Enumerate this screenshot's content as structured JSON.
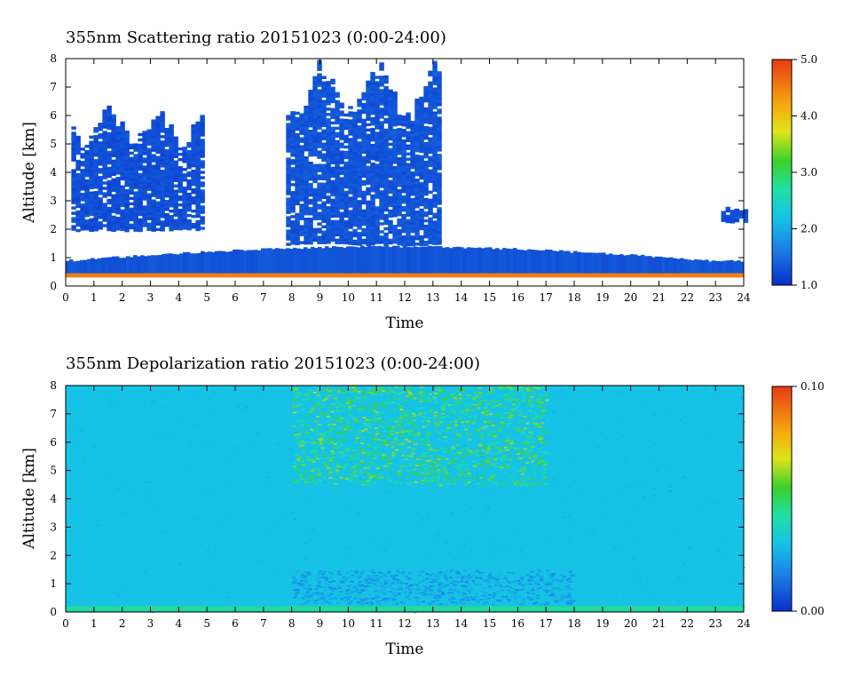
{
  "chart_data": [
    {
      "type": "heatmap",
      "title": "355nm Scattering ratio  20151023 (0:00-24:00)",
      "xlabel": "Time",
      "ylabel": "Altitude [km]",
      "xlim": [
        0,
        24
      ],
      "ylim": [
        0,
        8
      ],
      "x_ticks": [
        "0",
        "1",
        "2",
        "3",
        "4",
        "5",
        "6",
        "7",
        "8",
        "9",
        "10",
        "11",
        "12",
        "13",
        "14",
        "15",
        "16",
        "17",
        "18",
        "19",
        "20",
        "21",
        "22",
        "23",
        "24"
      ],
      "y_ticks": [
        "0",
        "1",
        "2",
        "3",
        "4",
        "5",
        "6",
        "7",
        "8"
      ],
      "colorbar": {
        "range": [
          1.0,
          5.0
        ],
        "ticks": [
          "1.0",
          "2.0",
          "3.0",
          "4.0",
          "5.0"
        ],
        "colormap": "jet"
      },
      "features": [
        {
          "kind": "cloud",
          "time": [
            0.2,
            4.8
          ],
          "altitude": [
            2.0,
            6.4
          ],
          "value": 1.25
        },
        {
          "kind": "cloud",
          "time": [
            7.8,
            13.2
          ],
          "altitude": [
            1.5,
            8.0
          ],
          "value": 1.3
        },
        {
          "kind": "cloud",
          "time": [
            23.2,
            24.0
          ],
          "altitude": [
            2.3,
            2.8
          ],
          "value": 1.25
        },
        {
          "kind": "boundary-layer",
          "time": [
            0,
            24
          ],
          "altitude": [
            0.4,
            1.7
          ],
          "value": 1.3
        },
        {
          "kind": "near-surface-layer",
          "time": [
            0,
            24
          ],
          "altitude": [
            0.3,
            0.45
          ],
          "value": 4.5
        }
      ]
    },
    {
      "type": "heatmap",
      "title": "355nm Depolarization ratio  20151023 (0:00-24:00)",
      "xlabel": "Time",
      "ylabel": "Altitude [km]",
      "xlim": [
        0,
        24
      ],
      "ylim": [
        0,
        8
      ],
      "x_ticks": [
        "0",
        "1",
        "2",
        "3",
        "4",
        "5",
        "6",
        "7",
        "8",
        "9",
        "10",
        "11",
        "12",
        "13",
        "14",
        "15",
        "16",
        "17",
        "18",
        "19",
        "20",
        "21",
        "22",
        "23",
        "24"
      ],
      "y_ticks": [
        "0",
        "1",
        "2",
        "3",
        "4",
        "5",
        "6",
        "7",
        "8"
      ],
      "colorbar": {
        "range": [
          0.0,
          0.1
        ],
        "ticks": [
          "0.00",
          "0.10"
        ],
        "colormap": "jet"
      },
      "features": [
        {
          "kind": "background",
          "time": [
            0,
            24
          ],
          "altitude": [
            0,
            8
          ],
          "value": 0.03
        },
        {
          "kind": "noisy-high-values",
          "time": [
            8,
            17
          ],
          "altitude": [
            4.5,
            8.0
          ],
          "value": 0.05
        },
        {
          "kind": "low-values",
          "time": [
            8,
            18
          ],
          "altitude": [
            0.3,
            1.5
          ],
          "value": 0.022
        },
        {
          "kind": "near-surface-layer",
          "time": [
            0,
            24
          ],
          "altitude": [
            0.05,
            0.2
          ],
          "value": 0.045
        }
      ]
    }
  ]
}
